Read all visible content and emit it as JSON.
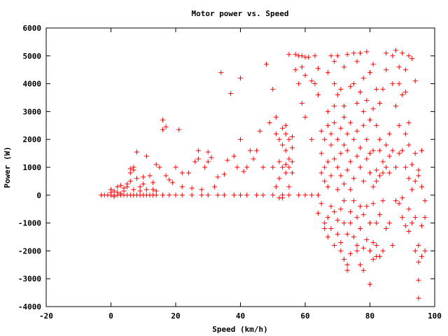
{
  "chart_data": {
    "type": "scatter",
    "title": "Motor power vs. Speed",
    "xlabel": "Speed (km/h)",
    "ylabel": "Power (W)",
    "xlim": [
      -20,
      100
    ],
    "ylim": [
      -4000,
      6000
    ],
    "x_ticks": [
      -20,
      0,
      20,
      40,
      60,
      80,
      100
    ],
    "y_ticks": [
      -4000,
      -3000,
      -2000,
      -1000,
      0,
      1000,
      2000,
      3000,
      4000,
      5000,
      6000
    ],
    "grid": false,
    "marker": "+",
    "color": "#ff0000",
    "points": [
      [
        -3,
        0
      ],
      [
        -2,
        0
      ],
      [
        -1,
        0
      ],
      [
        0,
        0
      ],
      [
        1,
        0
      ],
      [
        2,
        0
      ],
      [
        3,
        0
      ],
      [
        4,
        0
      ],
      [
        5,
        0
      ],
      [
        6,
        0
      ],
      [
        7,
        0
      ],
      [
        8,
        0
      ],
      [
        9,
        0
      ],
      [
        10,
        0
      ],
      [
        11,
        0
      ],
      [
        12,
        0
      ],
      [
        13,
        0
      ],
      [
        14,
        0
      ],
      [
        16,
        0
      ],
      [
        18,
        0
      ],
      [
        20,
        0
      ],
      [
        22,
        0
      ],
      [
        25,
        0
      ],
      [
        28,
        0
      ],
      [
        30,
        0
      ],
      [
        33,
        0
      ],
      [
        35,
        0
      ],
      [
        38,
        0
      ],
      [
        40,
        0
      ],
      [
        42,
        0
      ],
      [
        45,
        0
      ],
      [
        47,
        0
      ],
      [
        50,
        0
      ],
      [
        53,
        0
      ],
      [
        55,
        0
      ],
      [
        58,
        0
      ],
      [
        60,
        0
      ],
      [
        62,
        0
      ],
      [
        64,
        0
      ],
      [
        0,
        100
      ],
      [
        0,
        200
      ],
      [
        1,
        150
      ],
      [
        1,
        -50
      ],
      [
        2,
        300
      ],
      [
        2,
        100
      ],
      [
        3,
        350
      ],
      [
        3,
        50
      ],
      [
        4,
        250
      ],
      [
        4,
        150
      ],
      [
        5,
        400
      ],
      [
        5,
        300
      ],
      [
        6,
        800
      ],
      [
        6,
        950
      ],
      [
        6,
        500
      ],
      [
        7,
        900
      ],
      [
        7,
        1000
      ],
      [
        7,
        200
      ],
      [
        8,
        1550
      ],
      [
        8,
        600
      ],
      [
        9,
        150
      ],
      [
        9,
        300
      ],
      [
        10,
        650
      ],
      [
        10,
        400
      ],
      [
        11,
        1400
      ],
      [
        11,
        200
      ],
      [
        12,
        700
      ],
      [
        13,
        450
      ],
      [
        13,
        200
      ],
      [
        14,
        1100
      ],
      [
        14,
        150
      ],
      [
        15,
        1000
      ],
      [
        16,
        2700
      ],
      [
        16,
        2350
      ],
      [
        17,
        2450
      ],
      [
        17,
        700
      ],
      [
        18,
        550
      ],
      [
        19,
        450
      ],
      [
        20,
        1000
      ],
      [
        21,
        2350
      ],
      [
        22,
        800
      ],
      [
        22,
        300
      ],
      [
        24,
        800
      ],
      [
        25,
        250
      ],
      [
        26,
        1200
      ],
      [
        27,
        1600
      ],
      [
        27,
        1300
      ],
      [
        28,
        200
      ],
      [
        29,
        1000
      ],
      [
        30,
        1550
      ],
      [
        30,
        1200
      ],
      [
        31,
        1350
      ],
      [
        32,
        300
      ],
      [
        33,
        650
      ],
      [
        34,
        4400
      ],
      [
        35,
        750
      ],
      [
        36,
        1250
      ],
      [
        37,
        3650
      ],
      [
        38,
        1400
      ],
      [
        39,
        1000
      ],
      [
        40,
        4200
      ],
      [
        40,
        2000
      ],
      [
        41,
        850
      ],
      [
        42,
        1000
      ],
      [
        43,
        1600
      ],
      [
        44,
        1300
      ],
      [
        45,
        1600
      ],
      [
        46,
        2300
      ],
      [
        47,
        1000
      ],
      [
        48,
        4700
      ],
      [
        49,
        2600
      ],
      [
        50,
        3800
      ],
      [
        50,
        1000
      ],
      [
        51,
        2800
      ],
      [
        51,
        2200
      ],
      [
        51,
        300
      ],
      [
        52,
        2000
      ],
      [
        52,
        1200
      ],
      [
        52,
        600
      ],
      [
        52,
        -100
      ],
      [
        53,
        2400
      ],
      [
        53,
        1800
      ],
      [
        53,
        1000
      ],
      [
        53,
        -100
      ],
      [
        54,
        2200
      ],
      [
        54,
        1600
      ],
      [
        54,
        1100
      ],
      [
        54,
        800
      ],
      [
        54,
        2500
      ],
      [
        55,
        5050
      ],
      [
        55,
        1300
      ],
      [
        55,
        1000
      ],
      [
        55,
        2000
      ],
      [
        55,
        300
      ],
      [
        56,
        2100
      ],
      [
        56,
        1200
      ],
      [
        56,
        800
      ],
      [
        56,
        1700
      ],
      [
        57,
        5050
      ],
      [
        57,
        4500
      ],
      [
        58,
        5000
      ],
      [
        58,
        4000
      ],
      [
        59,
        5000
      ],
      [
        59,
        4600
      ],
      [
        59,
        3300
      ],
      [
        60,
        4950
      ],
      [
        60,
        4300
      ],
      [
        60,
        2800
      ],
      [
        61,
        4950
      ],
      [
        62,
        4100
      ],
      [
        62,
        2000
      ],
      [
        63,
        5000
      ],
      [
        63,
        4000
      ],
      [
        64,
        4550
      ],
      [
        64,
        3600
      ],
      [
        64,
        -650
      ],
      [
        65,
        1500
      ],
      [
        65,
        800
      ],
      [
        65,
        -300
      ],
      [
        65,
        2300
      ],
      [
        66,
        -1000
      ],
      [
        66,
        1000
      ],
      [
        66,
        2000
      ],
      [
        66,
        500
      ],
      [
        66,
        -1200
      ],
      [
        67,
        -1500
      ],
      [
        67,
        2500
      ],
      [
        67,
        300
      ],
      [
        67,
        1200
      ],
      [
        67,
        -800
      ],
      [
        67,
        3000
      ],
      [
        67,
        4400
      ],
      [
        68,
        -400
      ],
      [
        68,
        1800
      ],
      [
        68,
        700
      ],
      [
        68,
        -1200
      ],
      [
        68,
        2200
      ],
      [
        68,
        5000
      ],
      [
        69,
        -1800
      ],
      [
        69,
        4800
      ],
      [
        69,
        3200
      ],
      [
        69,
        -600
      ],
      [
        69,
        1300
      ],
      [
        69,
        2600
      ],
      [
        69,
        4000
      ],
      [
        70,
        -1400
      ],
      [
        70,
        2000
      ],
      [
        70,
        200
      ],
      [
        70,
        1000
      ],
      [
        70,
        -900
      ],
      [
        70,
        3600
      ],
      [
        70,
        5000
      ],
      [
        71,
        -2000
      ],
      [
        71,
        -500
      ],
      [
        71,
        1500
      ],
      [
        71,
        2400
      ],
      [
        71,
        -1700
      ],
      [
        71,
        700
      ],
      [
        71,
        3800
      ],
      [
        72,
        -2300
      ],
      [
        72,
        -1000
      ],
      [
        72,
        1800
      ],
      [
        72,
        2800
      ],
      [
        72,
        400
      ],
      [
        72,
        -200
      ],
      [
        72,
        3200
      ],
      [
        72,
        4600
      ],
      [
        73,
        -2700
      ],
      [
        73,
        -2500
      ],
      [
        73,
        900
      ],
      [
        73,
        1600
      ],
      [
        73,
        2200
      ],
      [
        73,
        -1400
      ],
      [
        73,
        5050
      ],
      [
        74,
        -2100
      ],
      [
        74,
        -600
      ],
      [
        74,
        1200
      ],
      [
        74,
        2600
      ],
      [
        74,
        3900
      ],
      [
        74,
        -1000
      ],
      [
        74,
        200
      ],
      [
        75,
        -1500
      ],
      [
        75,
        4000
      ],
      [
        75,
        2000
      ],
      [
        75,
        600
      ],
      [
        75,
        5100
      ],
      [
        75,
        -200
      ],
      [
        76,
        -2000
      ],
      [
        76,
        -1800
      ],
      [
        76,
        1400
      ],
      [
        76,
        3300
      ],
      [
        76,
        -800
      ],
      [
        76,
        2300
      ],
      [
        76,
        4800
      ],
      [
        77,
        -2500
      ],
      [
        77,
        -1200
      ],
      [
        77,
        1000
      ],
      [
        77,
        1700
      ],
      [
        77,
        -400
      ],
      [
        77,
        3700
      ],
      [
        77,
        5100
      ],
      [
        78,
        -2700
      ],
      [
        78,
        -1900
      ],
      [
        78,
        500
      ],
      [
        78,
        2500
      ],
      [
        78,
        3000
      ],
      [
        78,
        -700
      ],
      [
        78,
        4200
      ],
      [
        79,
        -1600
      ],
      [
        79,
        -400
      ],
      [
        79,
        1300
      ],
      [
        79,
        2000
      ],
      [
        79,
        5150
      ],
      [
        79,
        3400
      ],
      [
        80,
        -3200
      ],
      [
        80,
        -2000
      ],
      [
        80,
        800
      ],
      [
        80,
        2700
      ],
      [
        80,
        -1000
      ],
      [
        80,
        4400
      ],
      [
        80,
        1500
      ],
      [
        81,
        -2300
      ],
      [
        81,
        -1700
      ],
      [
        81,
        300
      ],
      [
        81,
        1600
      ],
      [
        81,
        3100
      ],
      [
        81,
        4700
      ],
      [
        81,
        -300
      ],
      [
        82,
        -2200
      ],
      [
        82,
        -1000
      ],
      [
        82,
        900
      ],
      [
        82,
        2500
      ],
      [
        82,
        3800
      ],
      [
        82,
        500
      ],
      [
        82,
        -1800
      ],
      [
        83,
        -2200
      ],
      [
        83,
        -700
      ],
      [
        83,
        1600
      ],
      [
        83,
        3300
      ],
      [
        83,
        2000
      ],
      [
        83,
        700
      ],
      [
        84,
        -2000
      ],
      [
        84,
        -200
      ],
      [
        84,
        800
      ],
      [
        84,
        3800
      ],
      [
        84,
        1200
      ],
      [
        85,
        -1200
      ],
      [
        85,
        1800
      ],
      [
        85,
        4500
      ],
      [
        85,
        1000
      ],
      [
        85,
        5100
      ],
      [
        86,
        -1000
      ],
      [
        86,
        800
      ],
      [
        86,
        1400
      ],
      [
        86,
        2200
      ],
      [
        87,
        -1800
      ],
      [
        87,
        1600
      ],
      [
        87,
        4000
      ],
      [
        87,
        5000
      ],
      [
        88,
        5200
      ],
      [
        88,
        -200
      ],
      [
        88,
        1000
      ],
      [
        88,
        3200
      ],
      [
        89,
        -300
      ],
      [
        89,
        1500
      ],
      [
        89,
        2500
      ],
      [
        89,
        4000
      ],
      [
        89,
        4600
      ],
      [
        90,
        -100
      ],
      [
        90,
        1600
      ],
      [
        90,
        3600
      ],
      [
        90,
        5100
      ],
      [
        90,
        -800
      ],
      [
        91,
        -1100
      ],
      [
        91,
        1000
      ],
      [
        91,
        2200
      ],
      [
        91,
        3700
      ],
      [
        91,
        4500
      ],
      [
        92,
        -1300
      ],
      [
        92,
        -500
      ],
      [
        92,
        600
      ],
      [
        92,
        1800
      ],
      [
        92,
        2600
      ],
      [
        92,
        5000
      ],
      [
        93,
        -1000
      ],
      [
        93,
        200
      ],
      [
        93,
        1100
      ],
      [
        93,
        4900
      ],
      [
        94,
        -2000
      ],
      [
        94,
        -800
      ],
      [
        94,
        500
      ],
      [
        94,
        1500
      ],
      [
        94,
        4100
      ],
      [
        95,
        -3700
      ],
      [
        95,
        -3050
      ],
      [
        95,
        -2400
      ],
      [
        95,
        -1800
      ],
      [
        95,
        900
      ],
      [
        95,
        700
      ],
      [
        96,
        -2200
      ],
      [
        96,
        -1100
      ],
      [
        96,
        300
      ],
      [
        96,
        1600
      ],
      [
        97,
        -2000
      ],
      [
        97,
        -800
      ],
      [
        97,
        -200
      ]
    ]
  }
}
